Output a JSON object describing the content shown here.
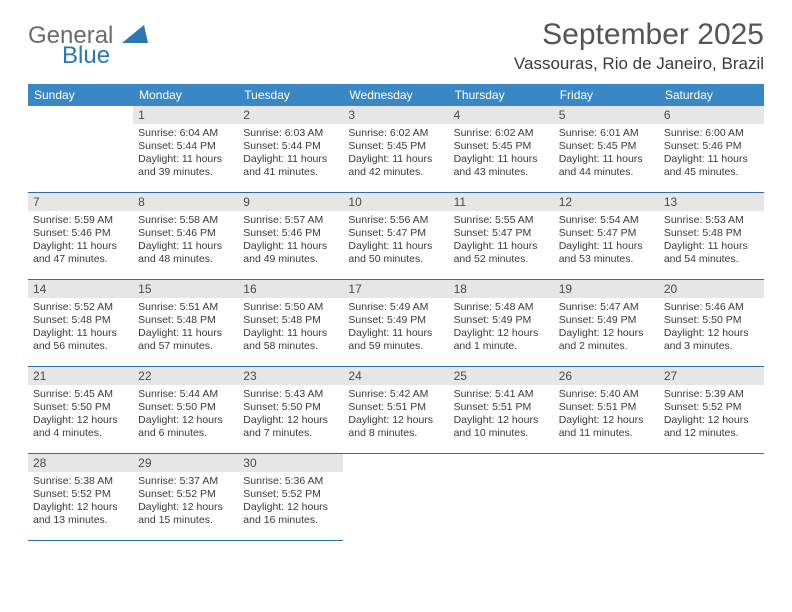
{
  "logo": {
    "word1": "General",
    "word2": "Blue"
  },
  "title": "September 2025",
  "location": "Vassouras, Rio de Janeiro, Brazil",
  "colors": {
    "header_bg": "#3a87c6",
    "header_text": "#ffffff",
    "daynum_bg": "#e6e6e6",
    "row_border": "#2f6da5",
    "logo_blue": "#2b77b5",
    "logo_gray": "#6b6b6b"
  },
  "weekdays": [
    "Sunday",
    "Monday",
    "Tuesday",
    "Wednesday",
    "Thursday",
    "Friday",
    "Saturday"
  ],
  "weeks": [
    [
      {
        "empty": true
      },
      {
        "n": "1",
        "sr": "Sunrise: 6:04 AM",
        "ss": "Sunset: 5:44 PM",
        "d1": "Daylight: 11 hours",
        "d2": "and 39 minutes."
      },
      {
        "n": "2",
        "sr": "Sunrise: 6:03 AM",
        "ss": "Sunset: 5:44 PM",
        "d1": "Daylight: 11 hours",
        "d2": "and 41 minutes."
      },
      {
        "n": "3",
        "sr": "Sunrise: 6:02 AM",
        "ss": "Sunset: 5:45 PM",
        "d1": "Daylight: 11 hours",
        "d2": "and 42 minutes."
      },
      {
        "n": "4",
        "sr": "Sunrise: 6:02 AM",
        "ss": "Sunset: 5:45 PM",
        "d1": "Daylight: 11 hours",
        "d2": "and 43 minutes."
      },
      {
        "n": "5",
        "sr": "Sunrise: 6:01 AM",
        "ss": "Sunset: 5:45 PM",
        "d1": "Daylight: 11 hours",
        "d2": "and 44 minutes."
      },
      {
        "n": "6",
        "sr": "Sunrise: 6:00 AM",
        "ss": "Sunset: 5:46 PM",
        "d1": "Daylight: 11 hours",
        "d2": "and 45 minutes."
      }
    ],
    [
      {
        "n": "7",
        "sr": "Sunrise: 5:59 AM",
        "ss": "Sunset: 5:46 PM",
        "d1": "Daylight: 11 hours",
        "d2": "and 47 minutes."
      },
      {
        "n": "8",
        "sr": "Sunrise: 5:58 AM",
        "ss": "Sunset: 5:46 PM",
        "d1": "Daylight: 11 hours",
        "d2": "and 48 minutes."
      },
      {
        "n": "9",
        "sr": "Sunrise: 5:57 AM",
        "ss": "Sunset: 5:46 PM",
        "d1": "Daylight: 11 hours",
        "d2": "and 49 minutes."
      },
      {
        "n": "10",
        "sr": "Sunrise: 5:56 AM",
        "ss": "Sunset: 5:47 PM",
        "d1": "Daylight: 11 hours",
        "d2": "and 50 minutes."
      },
      {
        "n": "11",
        "sr": "Sunrise: 5:55 AM",
        "ss": "Sunset: 5:47 PM",
        "d1": "Daylight: 11 hours",
        "d2": "and 52 minutes."
      },
      {
        "n": "12",
        "sr": "Sunrise: 5:54 AM",
        "ss": "Sunset: 5:47 PM",
        "d1": "Daylight: 11 hours",
        "d2": "and 53 minutes."
      },
      {
        "n": "13",
        "sr": "Sunrise: 5:53 AM",
        "ss": "Sunset: 5:48 PM",
        "d1": "Daylight: 11 hours",
        "d2": "and 54 minutes."
      }
    ],
    [
      {
        "n": "14",
        "sr": "Sunrise: 5:52 AM",
        "ss": "Sunset: 5:48 PM",
        "d1": "Daylight: 11 hours",
        "d2": "and 56 minutes."
      },
      {
        "n": "15",
        "sr": "Sunrise: 5:51 AM",
        "ss": "Sunset: 5:48 PM",
        "d1": "Daylight: 11 hours",
        "d2": "and 57 minutes."
      },
      {
        "n": "16",
        "sr": "Sunrise: 5:50 AM",
        "ss": "Sunset: 5:48 PM",
        "d1": "Daylight: 11 hours",
        "d2": "and 58 minutes."
      },
      {
        "n": "17",
        "sr": "Sunrise: 5:49 AM",
        "ss": "Sunset: 5:49 PM",
        "d1": "Daylight: 11 hours",
        "d2": "and 59 minutes."
      },
      {
        "n": "18",
        "sr": "Sunrise: 5:48 AM",
        "ss": "Sunset: 5:49 PM",
        "d1": "Daylight: 12 hours",
        "d2": "and 1 minute."
      },
      {
        "n": "19",
        "sr": "Sunrise: 5:47 AM",
        "ss": "Sunset: 5:49 PM",
        "d1": "Daylight: 12 hours",
        "d2": "and 2 minutes."
      },
      {
        "n": "20",
        "sr": "Sunrise: 5:46 AM",
        "ss": "Sunset: 5:50 PM",
        "d1": "Daylight: 12 hours",
        "d2": "and 3 minutes."
      }
    ],
    [
      {
        "n": "21",
        "sr": "Sunrise: 5:45 AM",
        "ss": "Sunset: 5:50 PM",
        "d1": "Daylight: 12 hours",
        "d2": "and 4 minutes."
      },
      {
        "n": "22",
        "sr": "Sunrise: 5:44 AM",
        "ss": "Sunset: 5:50 PM",
        "d1": "Daylight: 12 hours",
        "d2": "and 6 minutes."
      },
      {
        "n": "23",
        "sr": "Sunrise: 5:43 AM",
        "ss": "Sunset: 5:50 PM",
        "d1": "Daylight: 12 hours",
        "d2": "and 7 minutes."
      },
      {
        "n": "24",
        "sr": "Sunrise: 5:42 AM",
        "ss": "Sunset: 5:51 PM",
        "d1": "Daylight: 12 hours",
        "d2": "and 8 minutes."
      },
      {
        "n": "25",
        "sr": "Sunrise: 5:41 AM",
        "ss": "Sunset: 5:51 PM",
        "d1": "Daylight: 12 hours",
        "d2": "and 10 minutes."
      },
      {
        "n": "26",
        "sr": "Sunrise: 5:40 AM",
        "ss": "Sunset: 5:51 PM",
        "d1": "Daylight: 12 hours",
        "d2": "and 11 minutes."
      },
      {
        "n": "27",
        "sr": "Sunrise: 5:39 AM",
        "ss": "Sunset: 5:52 PM",
        "d1": "Daylight: 12 hours",
        "d2": "and 12 minutes."
      }
    ],
    [
      {
        "n": "28",
        "sr": "Sunrise: 5:38 AM",
        "ss": "Sunset: 5:52 PM",
        "d1": "Daylight: 12 hours",
        "d2": "and 13 minutes."
      },
      {
        "n": "29",
        "sr": "Sunrise: 5:37 AM",
        "ss": "Sunset: 5:52 PM",
        "d1": "Daylight: 12 hours",
        "d2": "and 15 minutes."
      },
      {
        "n": "30",
        "sr": "Sunrise: 5:36 AM",
        "ss": "Sunset: 5:52 PM",
        "d1": "Daylight: 12 hours",
        "d2": "and 16 minutes."
      },
      {
        "empty": true,
        "trailing": true
      },
      {
        "empty": true,
        "trailing": true
      },
      {
        "empty": true,
        "trailing": true
      },
      {
        "empty": true,
        "trailing": true
      }
    ]
  ]
}
